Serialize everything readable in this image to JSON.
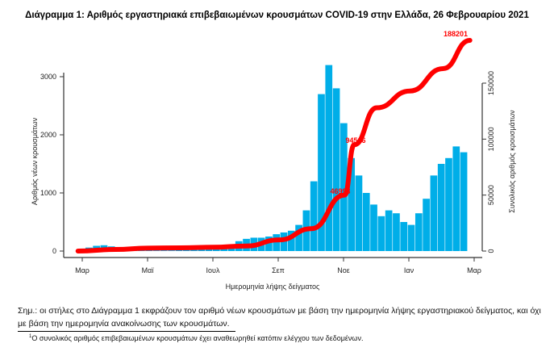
{
  "chart_data": {
    "type": "bar",
    "title": "Διάγραμμα 1: Αριθμός εργαστηριακά επιβεβαιωμένων κρουσμάτων COVID-19 στην Ελλάδα, 26 Φεβρουαρίου 2021",
    "xlabel": "Ημερομηνία λήψης δείγματος",
    "ylabel": "Αριθμός νέων κρουσμάτων",
    "y2label": "Συνολικός αριθμός κρουσμάτων",
    "x_ticks": [
      "Μαρ",
      "Μαϊ",
      "Ιουλ",
      "Σεπ",
      "Νοε",
      "Ιαν",
      "Μαρ"
    ],
    "y_ticks": [
      0,
      1000,
      2000,
      3000
    ],
    "y2_ticks": [
      0,
      50000,
      100000,
      150000
    ],
    "ylim": [
      0,
      3600
    ],
    "y2lim": [
      0,
      175000
    ],
    "grid": false,
    "bar_color": "#00aee8",
    "line_color": "#ff0000",
    "bars_weekly": {
      "start": "2020-02-26",
      "values": [
        20,
        60,
        90,
        100,
        80,
        60,
        40,
        25,
        20,
        15,
        12,
        12,
        12,
        15,
        20,
        30,
        35,
        40,
        45,
        60,
        110,
        170,
        210,
        230,
        230,
        250,
        290,
        320,
        350,
        450,
        700,
        1200,
        2700,
        3200,
        2800,
        2200,
        1600,
        1300,
        1000,
        800,
        600,
        700,
        650,
        500,
        450,
        650,
        900,
        1300,
        1500,
        1600,
        1800,
        1700
      ]
    },
    "cumulative": {
      "dates": [
        "2020-02-26",
        "2020-04-01",
        "2020-05-01",
        "2020-06-01",
        "2020-07-01",
        "2020-08-01",
        "2020-09-01",
        "2020-10-01",
        "2020-11-01",
        "2020-11-10",
        "2020-12-01",
        "2021-01-01",
        "2021-02-01",
        "2021-02-26"
      ],
      "values": [
        0,
        1400,
        2600,
        2900,
        3400,
        4500,
        10000,
        20000,
        50000,
        95000,
        128000,
        143000,
        163000,
        188201
      ]
    },
    "annotations": [
      "46993",
      "94516",
      "188201"
    ]
  },
  "note": "Σημ.: οι στήλες στο Διάγραμμα 1 εκφράζουν τον αριθμό νέων κρουσμάτων με βάση την ημερομηνία λήψης εργαστηριακού δείγματος, και όχι με βάση την ημερομηνία ανακοίνωσης των κρουσμάτων.",
  "footnote_mark": "1",
  "footnote": "Ο συνολικός αριθμός επιβεβαιωμένων κρουσμάτων έχει αναθεωρηθεί κατόπιν ελέγχου των δεδομένων."
}
